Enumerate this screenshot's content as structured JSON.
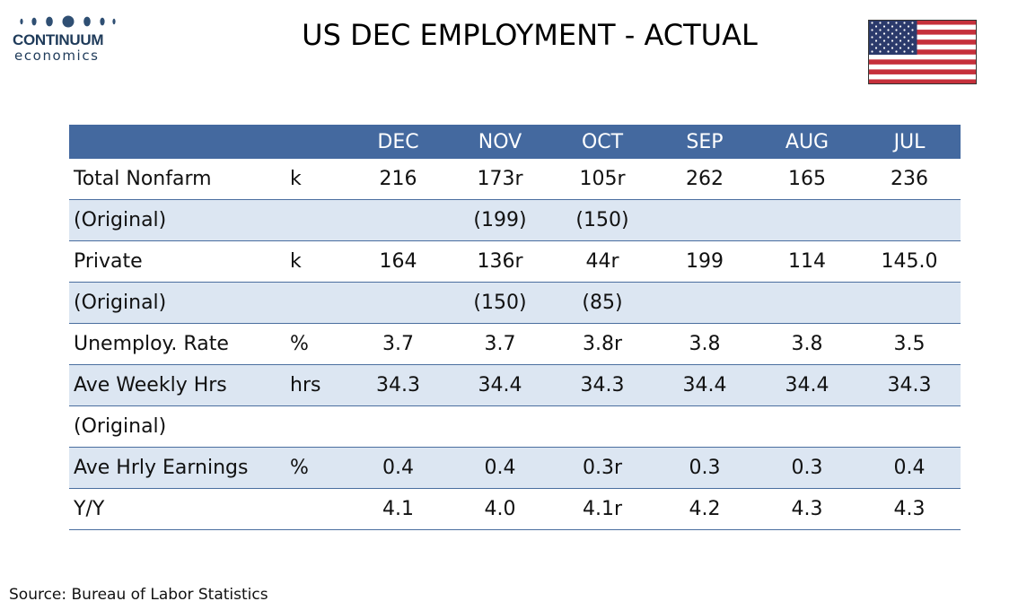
{
  "logo": {
    "name": "CONTINUUM",
    "sub": "economics"
  },
  "title": "US DEC EMPLOYMENT - ACTUAL",
  "table": {
    "headers": [
      "",
      "",
      "DEC",
      "NOV",
      "OCT",
      "SEP",
      "AUG",
      "JUL"
    ],
    "rows": [
      {
        "label": "Total Nonfarm",
        "unit": "k",
        "values": [
          "216",
          "173r",
          "105r",
          "262",
          "165",
          "236"
        ]
      },
      {
        "label": "(Original)",
        "unit": "",
        "values": [
          "",
          "(199)",
          "(150)",
          "",
          "",
          ""
        ]
      },
      {
        "label": "Private",
        "unit": "k",
        "values": [
          "164",
          "136r",
          "44r",
          "199",
          "114",
          "145.0"
        ]
      },
      {
        "label": "(Original)",
        "unit": "",
        "values": [
          "",
          "(150)",
          "(85)",
          "",
          "",
          ""
        ]
      },
      {
        "label": "Unemploy. Rate",
        "unit": "%",
        "values": [
          "3.7",
          "3.7",
          "3.8r",
          "3.8",
          "3.8",
          "3.5"
        ]
      },
      {
        "label": "Ave Weekly Hrs",
        "unit": "hrs",
        "values": [
          "34.3",
          "34.4",
          "34.3",
          "34.4",
          "34.4",
          "34.3"
        ]
      },
      {
        "label": "(Original)",
        "unit": "",
        "values": [
          "",
          "",
          "",
          "",
          "",
          ""
        ]
      },
      {
        "label": "Ave Hrly Earnings",
        "unit": "%",
        "values": [
          "0.4",
          "0.4",
          "0.3r",
          "0.3",
          "0.3",
          "0.4"
        ]
      },
      {
        "label": "Y/Y",
        "unit": "",
        "values": [
          "4.1",
          "4.0",
          "4.1r",
          "4.2",
          "4.3",
          "4.3"
        ]
      }
    ]
  },
  "source": "Source: Bureau of Labor Statistics",
  "colors": {
    "header_bg": "#44699f",
    "row_shade": "#dce6f2",
    "logo": "#1f3b5a",
    "flag_red": "#c5303b",
    "flag_blue": "#2b3a6b"
  },
  "icons": {
    "flag": "us-flag-icon",
    "logo": "continuum-logo"
  }
}
